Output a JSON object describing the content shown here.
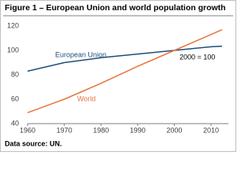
{
  "chart_data": {
    "type": "line",
    "title": "Figure 1 – European Union and world population growth",
    "source": "Data source: UN.",
    "annotation": "2000 = 100",
    "x": [
      1960,
      1970,
      1980,
      1990,
      2000,
      2010,
      2013
    ],
    "series": [
      {
        "name": "European Union",
        "color": "#1f4e79",
        "values": [
          83,
          90,
          94,
          97,
          100,
          103,
          103.5
        ]
      },
      {
        "name": "World",
        "color": "#e8743b",
        "values": [
          49,
          60,
          73,
          87,
          100,
          113,
          117
        ]
      }
    ],
    "xlim": [
      1960,
      2013
    ],
    "xticks": [
      1960,
      1970,
      1980,
      1990,
      2000,
      2010
    ],
    "ylim": [
      40,
      120
    ],
    "yticks": [
      40,
      60,
      80,
      100,
      120
    ]
  }
}
